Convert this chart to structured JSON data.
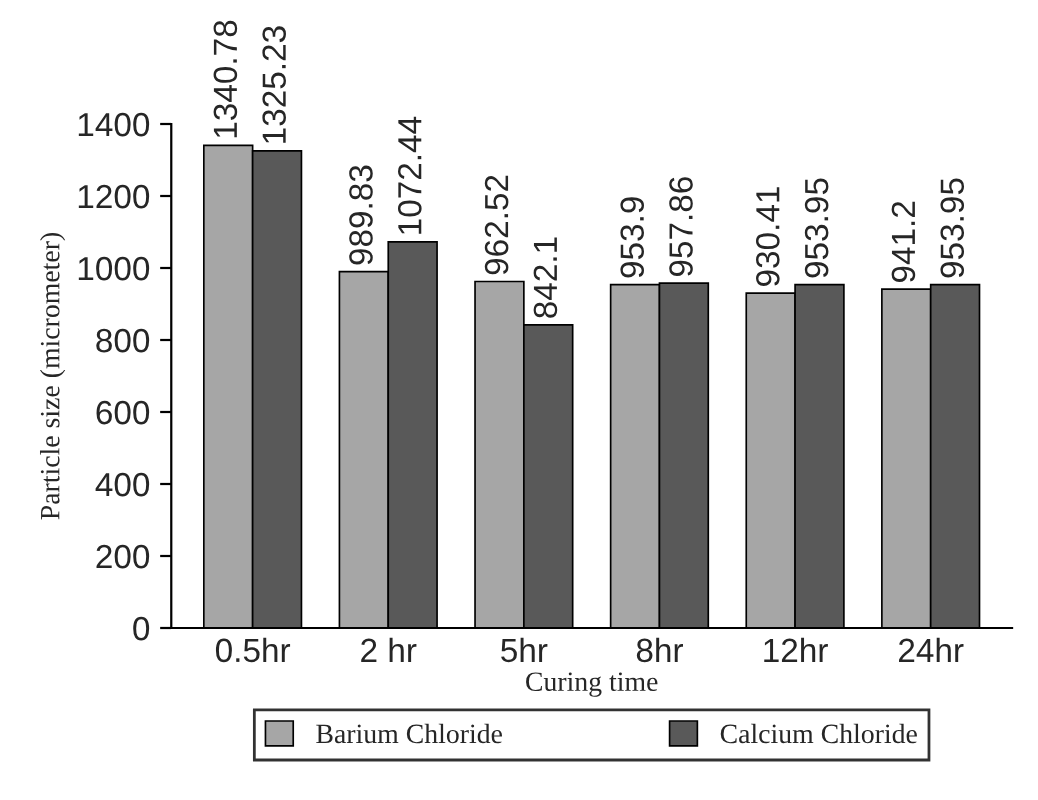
{
  "chart_data": {
    "type": "bar",
    "xlabel": "Curing time",
    "ylabel": "Particle size (micrometer)",
    "categories": [
      "0.5hr",
      "2 hr",
      "5hr",
      "8hr",
      "12hr",
      "24hr"
    ],
    "series": [
      {
        "name": "Barium Chloride",
        "color": "#a6a6a6",
        "values": [
          1340.78,
          989.83,
          962.52,
          953.9,
          930.41,
          941.2
        ]
      },
      {
        "name": "Calcium Chloride",
        "color": "#595959",
        "values": [
          1325.23,
          1072.44,
          842.1,
          957.86,
          953.95,
          953.95
        ]
      }
    ],
    "ylim": [
      0,
      1400
    ],
    "yticks": [
      0,
      200,
      400,
      600,
      800,
      1000,
      1200,
      1400
    ],
    "data_labels": true,
    "grid": false,
    "legend": "bottom"
  }
}
